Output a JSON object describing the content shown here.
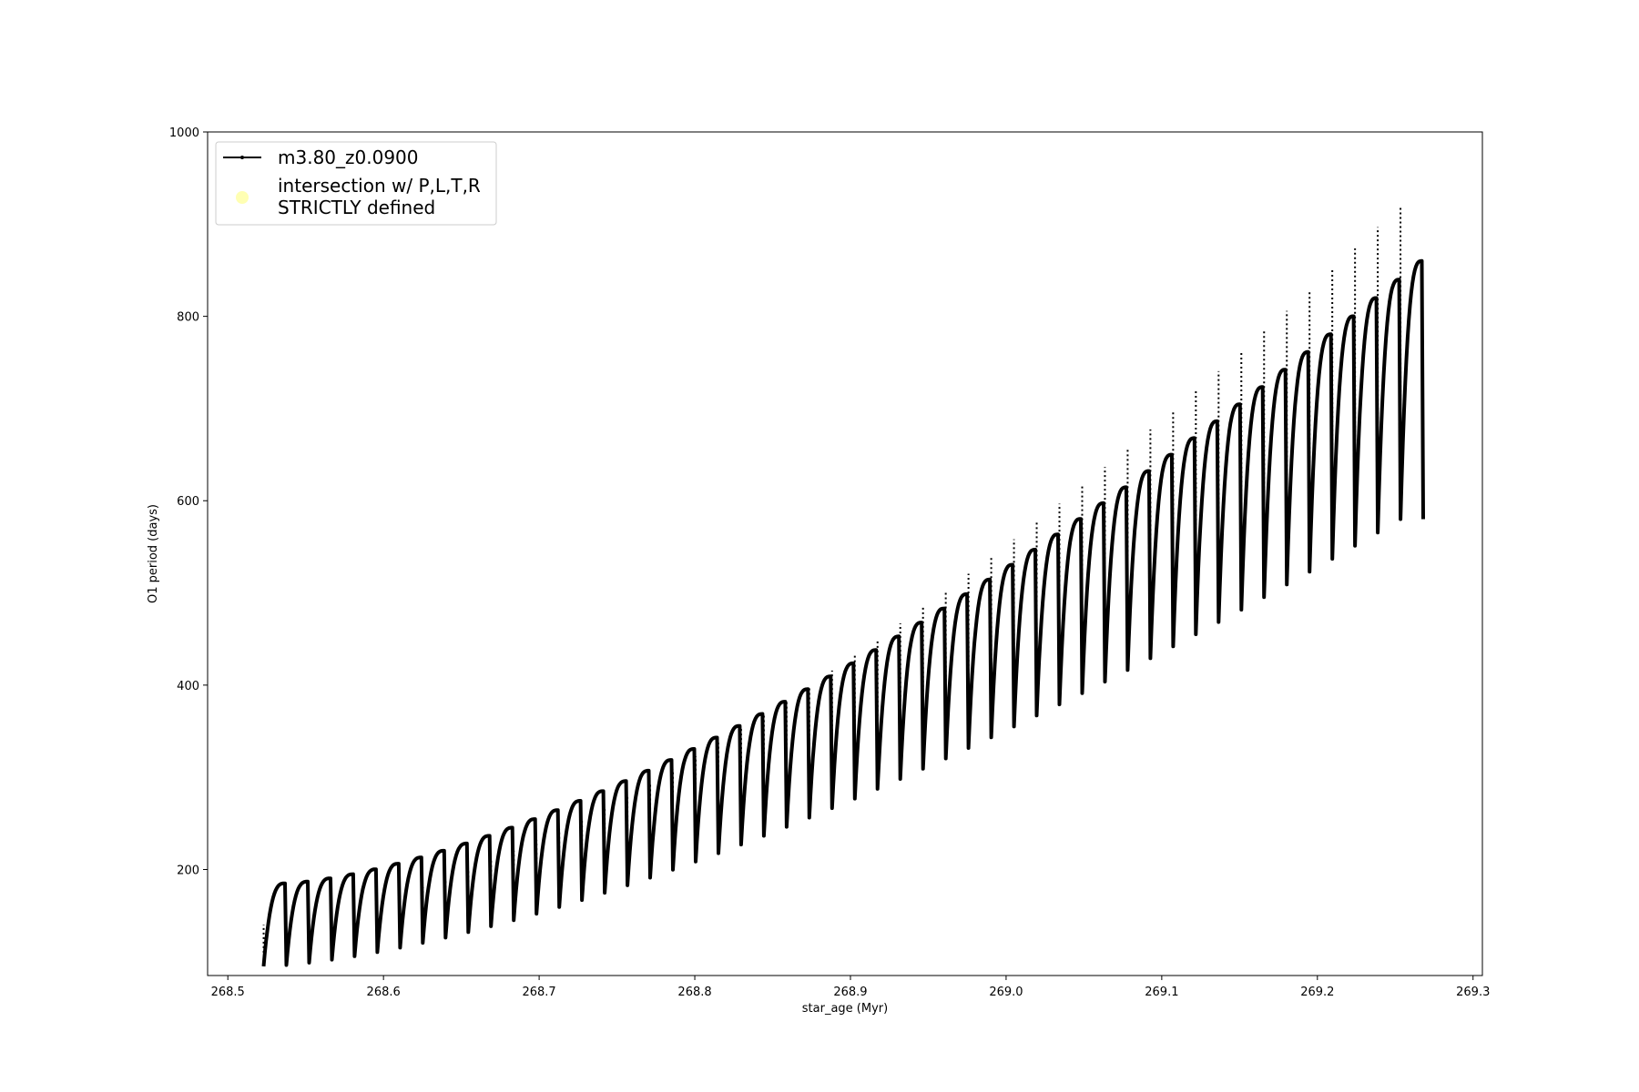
{
  "chart_data": {
    "type": "line",
    "title": "",
    "xlabel": "star_age (Myr)",
    "ylabel": "O1 period (days)",
    "xlim": [
      268.487,
      269.306
    ],
    "ylim": [
      85,
      1000
    ],
    "xticks": [
      "268.5",
      "268.6",
      "268.7",
      "268.8",
      "268.9",
      "269.0",
      "269.1",
      "269.2",
      "269.3"
    ],
    "yticks": [
      "200",
      "400",
      "600",
      "800",
      "1000"
    ],
    "grid": false,
    "legend_position": "upper-left",
    "series": [
      {
        "name": "m3.80_z0.0900",
        "color": "#000000",
        "marker": "dot",
        "cycles": {
          "count": 51,
          "age_start": 268.523,
          "age_end": 269.268,
          "trough_start": 95,
          "trough_end": 580,
          "peak_start": 185,
          "peak_end": 860,
          "spike_start": 140,
          "spike_end": 1000
        }
      },
      {
        "name": "intersection w/ P,L,T,R\nSTRICTLY defined",
        "name_lines": [
          "intersection w/ P,L,T,R",
          "STRICTLY defined"
        ],
        "color": "#ffffb3",
        "marker": "circle",
        "points": []
      }
    ]
  }
}
